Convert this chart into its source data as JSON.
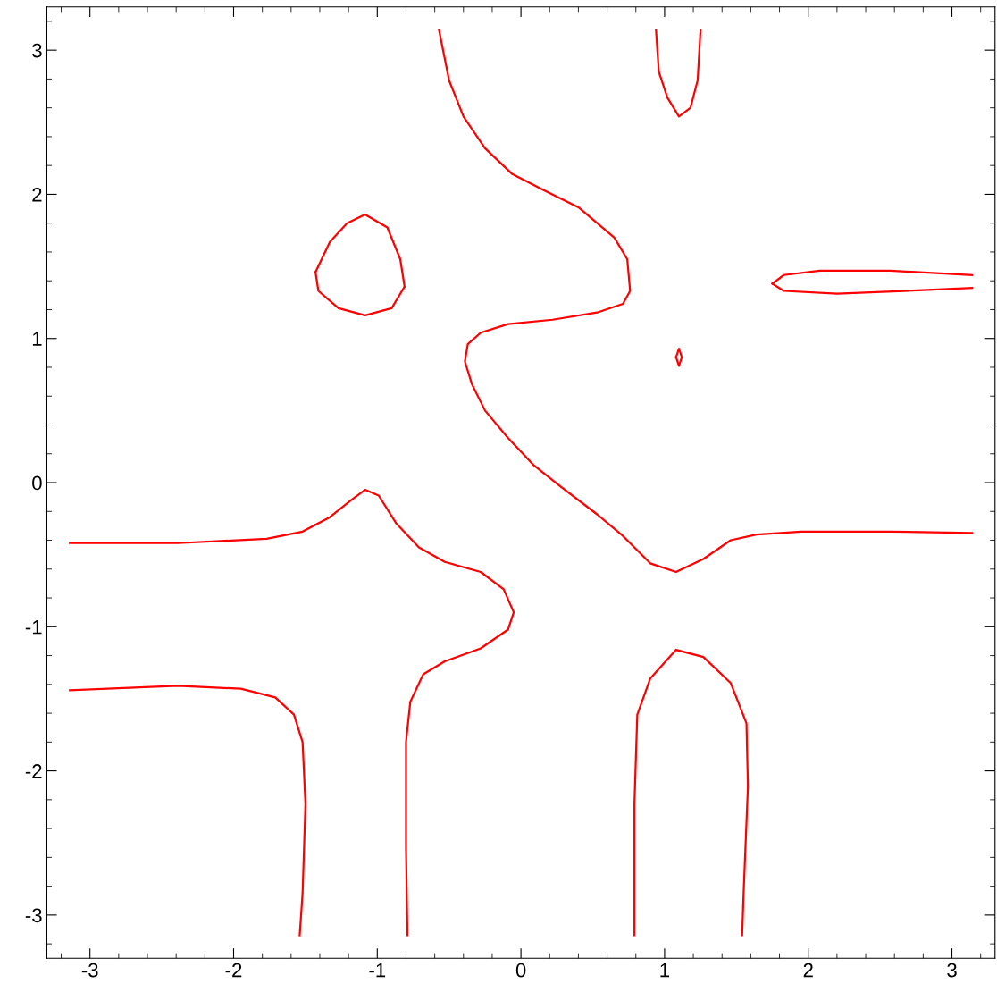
{
  "chart_data": {
    "type": "line",
    "xlim": [
      -3.3,
      3.3
    ],
    "ylim": [
      -3.3,
      3.3
    ],
    "xticks": [
      -3,
      -2,
      -1,
      0,
      1,
      2,
      3
    ],
    "yticks": [
      -3,
      -2,
      -1,
      0,
      1,
      2,
      3
    ],
    "grid": false,
    "marker": "none",
    "line_style": "solid",
    "series": [
      {
        "color": "#ff0000",
        "x": [
          -0.57,
          -0.5,
          -0.4,
          -0.25,
          -0.06,
          0.155,
          0.4,
          0.65,
          0.74,
          0.76,
          0.71,
          0.53,
          0.22,
          -0.09,
          -0.28,
          -0.37,
          -0.39,
          -0.34,
          -0.25,
          -0.09,
          0.09,
          0.28,
          0.53,
          0.71,
          0.9,
          1.08,
          1.27,
          1.46,
          1.64,
          1.95,
          2.57,
          3.14
        ],
        "values": [
          3.14,
          2.79,
          2.54,
          2.32,
          2.14,
          2.03,
          1.91,
          1.7,
          1.55,
          1.33,
          1.24,
          1.18,
          1.13,
          1.1,
          1.04,
          0.96,
          0.84,
          0.68,
          0.5,
          0.31,
          0.12,
          -0.03,
          -0.22,
          -0.37,
          -0.56,
          -0.62,
          -0.53,
          -0.4,
          -0.36,
          -0.34,
          -0.34,
          -0.35
        ]
      },
      {
        "color": "#ff0000",
        "x": [
          0.94,
          0.96,
          1.02,
          1.1,
          1.18,
          1.23,
          1.25
        ],
        "values": [
          3.14,
          2.85,
          2.67,
          2.54,
          2.6,
          2.79,
          3.14
        ]
      },
      {
        "color": "#ff0000",
        "x": [
          -1.43,
          -1.33,
          -1.21,
          -1.085,
          -0.93,
          -0.84,
          -0.81
        ],
        "values": [
          1.46,
          1.67,
          1.8,
          1.86,
          1.77,
          1.55,
          1.36
        ]
      },
      {
        "color": "#ff0000",
        "x": [
          -1.43,
          -1.41,
          -1.27,
          -1.085,
          -0.9,
          -0.81
        ],
        "values": [
          1.46,
          1.33,
          1.21,
          1.16,
          1.21,
          1.36
        ]
      },
      {
        "color": "#ff0000",
        "x": [
          1.75,
          1.83,
          2.08,
          2.57,
          3.14
        ],
        "values": [
          1.38,
          1.44,
          1.47,
          1.47,
          1.44
        ]
      },
      {
        "color": "#ff0000",
        "x": [
          1.75,
          1.83,
          2.2,
          3.14
        ],
        "values": [
          1.38,
          1.33,
          1.31,
          1.35
        ]
      },
      {
        "color": "#ff0000",
        "x": [
          1.08,
          1.1,
          1.12
        ],
        "values": [
          0.87,
          0.93,
          0.87
        ]
      },
      {
        "color": "#ff0000",
        "x": [
          1.08,
          1.1,
          1.12
        ],
        "values": [
          0.87,
          0.81,
          0.87
        ]
      },
      {
        "color": "#ff0000",
        "x": [
          -3.14,
          -2.39,
          -1.77,
          -1.52,
          -1.33,
          -1.18,
          -1.085,
          -0.99,
          -0.87,
          -0.71,
          -0.53,
          -0.28,
          -0.12,
          -0.05,
          -0.09,
          -0.28,
          -0.53,
          -0.68,
          -0.77,
          -0.8,
          -0.8,
          -0.79
        ],
        "values": [
          -0.42,
          -0.42,
          -0.39,
          -0.34,
          -0.24,
          -0.12,
          -0.05,
          -0.09,
          -0.28,
          -0.45,
          -0.55,
          -0.62,
          -0.74,
          -0.9,
          -1.02,
          -1.15,
          -1.24,
          -1.33,
          -1.52,
          -1.8,
          -2.54,
          -3.14
        ]
      },
      {
        "color": "#ff0000",
        "x": [
          -3.14,
          -2.39,
          -1.95,
          -1.71,
          -1.58,
          -1.52,
          -1.5,
          -1.52,
          -1.54
        ],
        "values": [
          -1.44,
          -1.41,
          -1.43,
          -1.49,
          -1.61,
          -1.8,
          -2.23,
          -2.85,
          -3.14
        ]
      },
      {
        "color": "#ff0000",
        "x": [
          0.79,
          0.79,
          0.81,
          0.9,
          1.08,
          1.27,
          1.46,
          1.57,
          1.58,
          1.55,
          1.54
        ],
        "values": [
          -3.14,
          -2.23,
          -1.61,
          -1.36,
          -1.16,
          -1.21,
          -1.39,
          -1.67,
          -2.11,
          -2.85,
          -3.14
        ]
      }
    ]
  }
}
